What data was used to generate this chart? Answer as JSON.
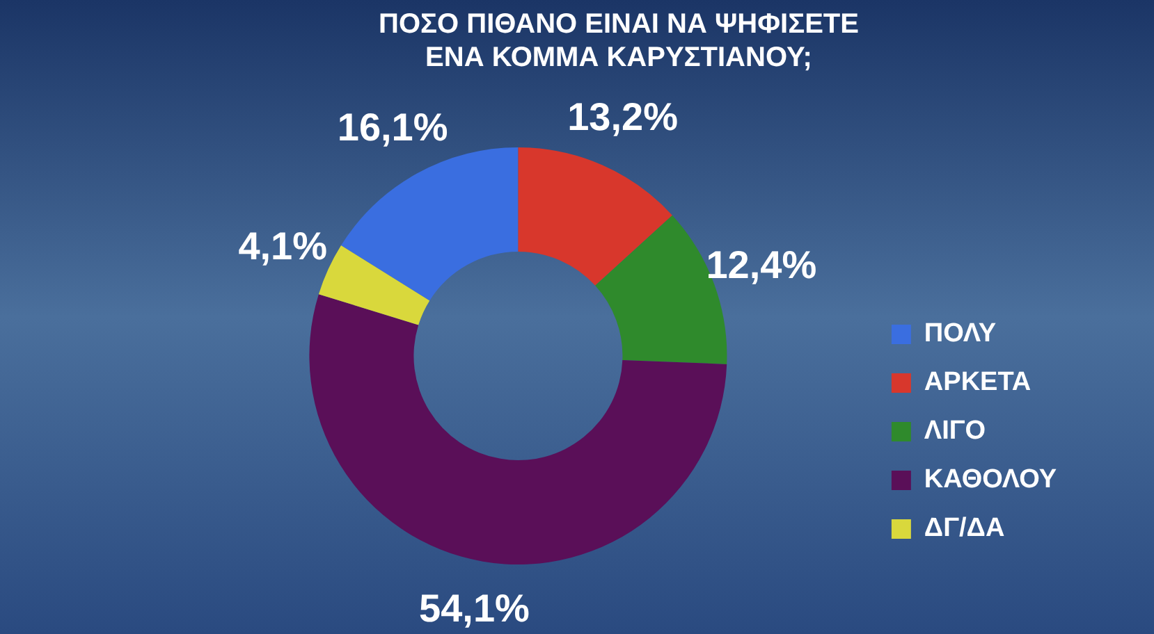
{
  "chart_data": {
    "type": "donut",
    "title": "ΠΟΣΟ ΠΙΘΑΝΟ ΕΙΝΑΙ ΝΑ ΨΗΦΙΣΕΤΕ\nΕΝΑ ΚΟΜΜΑ ΚΑΡΥΣΤΙΑΝΟΥ;",
    "categories": [
      "ΠΟΛΥ",
      "ΑΡΚΕΤΑ",
      "ΛΙΓΟ",
      "ΚΑΘΟΛΟΥ",
      "ΔΓ/ΔΑ"
    ],
    "values": [
      16.1,
      13.2,
      12.4,
      54.1,
      4.1
    ],
    "value_labels": [
      "16,1%",
      "13,2%",
      "12,4%",
      "54,1%",
      "4,1%"
    ],
    "colors": [
      "#3a6ee0",
      "#d8372c",
      "#2f8a2c",
      "#5a0f58",
      "#d9d83c"
    ],
    "legend": "right"
  }
}
